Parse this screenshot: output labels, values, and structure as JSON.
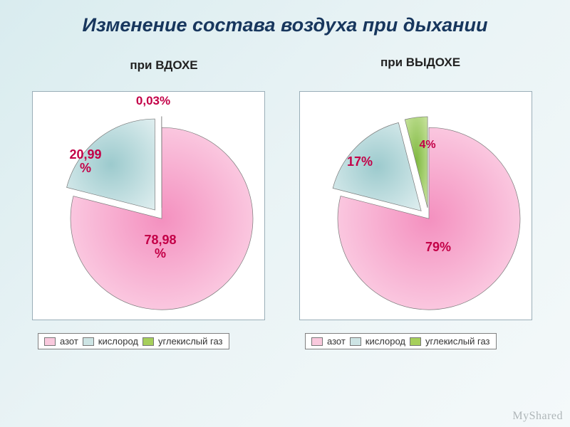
{
  "title": {
    "text": "Изменение состава воздуха  при дыхании",
    "fontsize": 27,
    "color": "#17365d"
  },
  "subtitles": {
    "inhale": {
      "text": "при ВДОХЕ",
      "fontsize": 17
    },
    "exhale": {
      "text": "при ВЫДОХЕ",
      "fontsize": 17
    }
  },
  "legend": {
    "items": [
      {
        "label": "азот",
        "color": "#f9c9dd"
      },
      {
        "label": "кислород",
        "color": "#cde4e4"
      },
      {
        "label": "углекислый газ",
        "color": "#a6cf5b"
      }
    ]
  },
  "charts": {
    "inhale": {
      "type": "pie",
      "background_color": "#ffffff",
      "border_color": "#9aaeb8",
      "slices": [
        {
          "name": "азот",
          "value": 78.98,
          "display": "78,98\n%",
          "color_inner": "#f490bf",
          "color_outer": "#fde2ef",
          "text_color": "#c30047",
          "fontsize": 18,
          "exploded": false
        },
        {
          "name": "кислород",
          "value": 20.99,
          "display": "20,99\n%",
          "color_inner": "#9ccacd",
          "color_outer": "#e4f1f2",
          "text_color": "#c30047",
          "fontsize": 18,
          "exploded": true
        },
        {
          "name": "углекислый газ",
          "value": 0.03,
          "display": "0,03%",
          "color_inner": "#7fb840",
          "color_outer": "#cfe8a6",
          "text_color": "#c30047",
          "fontsize": 17,
          "exploded": true
        }
      ]
    },
    "exhale": {
      "type": "pie",
      "background_color": "#ffffff",
      "border_color": "#9aaeb8",
      "slices": [
        {
          "name": "азот",
          "value": 79,
          "display": "79%",
          "color_inner": "#f490bf",
          "color_outer": "#fde2ef",
          "text_color": "#c30047",
          "fontsize": 18,
          "exploded": false
        },
        {
          "name": "кислород",
          "value": 17,
          "display": "17%",
          "color_inner": "#9ccacd",
          "color_outer": "#e4f1f2",
          "text_color": "#c30047",
          "fontsize": 18,
          "exploded": true
        },
        {
          "name": "углекислый газ",
          "value": 4,
          "display": "4%",
          "color_inner": "#7fb840",
          "color_outer": "#cfe8a6",
          "text_color": "#c30047",
          "fontsize": 16,
          "exploded": true
        }
      ]
    }
  },
  "watermark": "MyShared"
}
